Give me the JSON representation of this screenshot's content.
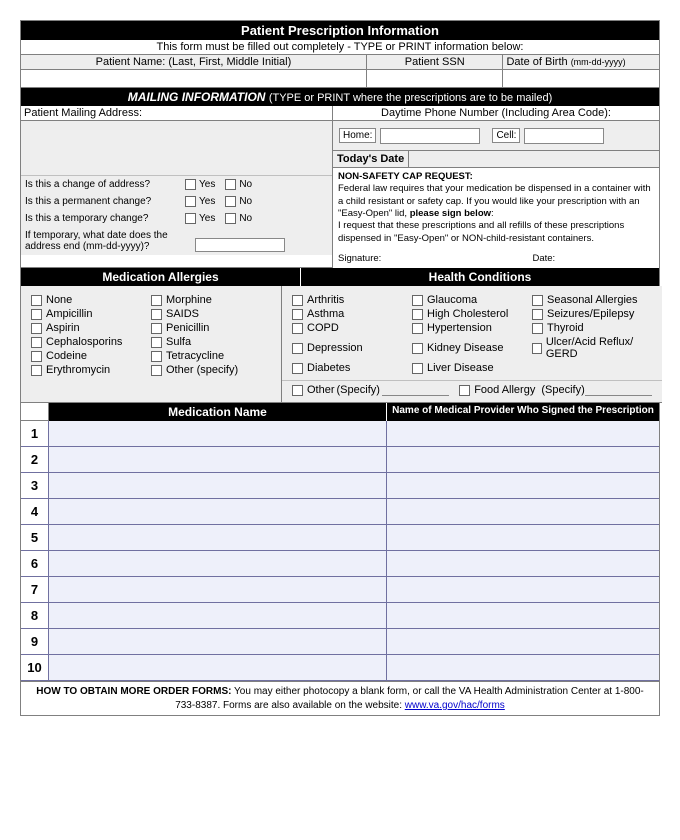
{
  "header": {
    "title": "Patient Prescription Information",
    "instruction": "This form must be filled out completely - TYPE or PRINT information below:"
  },
  "patient": {
    "name_label": "Patient Name: (Last, First, Middle Initial)",
    "ssn_label": "Patient SSN",
    "dob_label": "Date of Birth",
    "dob_hint": "(mm-dd-yyyy)"
  },
  "mailing": {
    "title": "MAILING INFORMATION",
    "title_suffix": "(TYPE or PRINT where the prescriptions are to be mailed)",
    "address_label": "Patient Mailing Address:",
    "phone_label": "Daytime Phone Number (Including Area Code):",
    "home_label": "Home:",
    "cell_label": "Cell:",
    "today_label": "Today's Date",
    "q1": "Is this a change of address?",
    "q2": "Is this a permanent change?",
    "q3": "Is this a temporary change?",
    "q4a": "If temporary, what date does the",
    "q4b": "address end (mm-dd-yyyy)?",
    "yes": "Yes",
    "no": "No"
  },
  "nonsafety": {
    "title": "NON-SAFETY CAP REQUEST:",
    "line1": "Federal law requires that your medication be dispensed in a container with a child resistant or safety cap. If you would like your prescription with an \"Easy-Open\" lid, ",
    "bold": "please sign below",
    "text2": "I request that these prescriptions and all refills of these prescriptions dispensed in \"Easy-Open\" or NON-child-resistant containers.",
    "sig_label": "Signature:",
    "date_label": "Date:"
  },
  "allergies": {
    "title": "Medication Allergies",
    "items_col1": [
      "None",
      "Ampicillin",
      "Aspirin",
      "Cephalosporins",
      "Codeine",
      "Erythromycin"
    ],
    "items_col2": [
      "Morphine",
      "SAIDS",
      "Penicillin",
      "Sulfa",
      "Tetracycline",
      "Other (specify)"
    ]
  },
  "health": {
    "title": "Health Conditions",
    "items_col1": [
      "Arthritis",
      "Asthma",
      "COPD",
      "Depression",
      "Diabetes"
    ],
    "items_col2": [
      "Glaucoma",
      "High Cholesterol",
      "Hypertension",
      "Kidney Disease",
      "Liver Disease"
    ],
    "items_col3": [
      "Seasonal Allergies",
      "Seizures/Epilepsy",
      "Thyroid",
      "Ulcer/Acid Reflux/ GERD"
    ],
    "other": "Other",
    "specify": "(Specify)",
    "food": "Food Allergy"
  },
  "meds": {
    "name_hdr": "Medication Name",
    "prov_hdr": "Name of Medical Provider Who Signed the Prescription",
    "rows": [
      "1",
      "2",
      "3",
      "4",
      "5",
      "6",
      "7",
      "8",
      "9",
      "10"
    ]
  },
  "footer": {
    "bold": "HOW TO OBTAIN MORE ORDER FORMS:",
    "text": " You may either photocopy a blank form, or call the VA Health Administration Center at 1-800-733-8387. Forms are also available on the website: ",
    "link": "www.va.gov/hac/forms"
  },
  "colors": {
    "black": "#000000",
    "grey": "#eeeeee",
    "lav": "#eef0fa",
    "border": "#808080"
  }
}
